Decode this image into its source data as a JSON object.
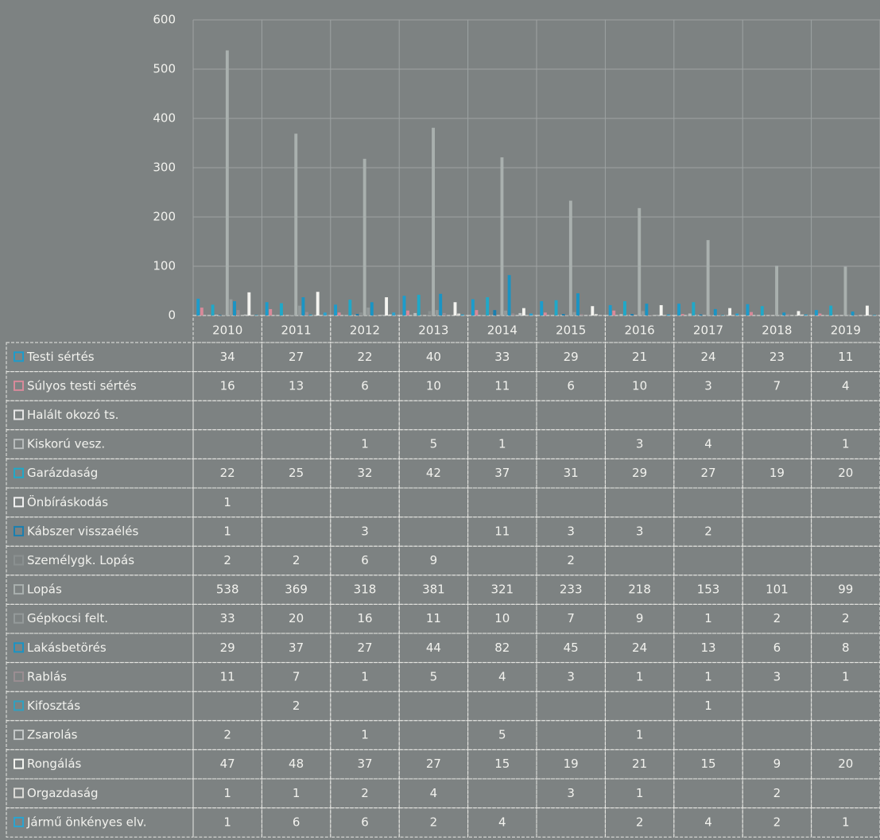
{
  "chart_data": {
    "type": "bar",
    "categories": [
      "2010",
      "2011",
      "2012",
      "2013",
      "2014",
      "2015",
      "2016",
      "2017",
      "2018",
      "2019"
    ],
    "ylim": [
      0,
      600
    ],
    "yticks": [
      0,
      100,
      200,
      300,
      400,
      500,
      600
    ],
    "grid": true,
    "series": [
      {
        "name": "Testi sértés",
        "color": "#1c9ccc",
        "values": [
          34,
          27,
          22,
          40,
          33,
          29,
          21,
          24,
          23,
          11
        ]
      },
      {
        "name": "Súlyos testi sértés",
        "color": "#d88a9a",
        "values": [
          16,
          13,
          6,
          10,
          11,
          6,
          10,
          3,
          7,
          4
        ]
      },
      {
        "name": "Halált okozó ts.",
        "color": "#e6e6e6",
        "values": [
          null,
          null,
          null,
          null,
          null,
          null,
          null,
          null,
          null,
          null
        ]
      },
      {
        "name": "Kiskorú vesz.",
        "color": "#b8bcbc",
        "values": [
          null,
          null,
          1,
          5,
          1,
          null,
          3,
          4,
          null,
          1
        ]
      },
      {
        "name": "Garázdaság",
        "color": "#20a8c8",
        "values": [
          22,
          25,
          32,
          42,
          37,
          31,
          29,
          27,
          19,
          20
        ]
      },
      {
        "name": "Önbíráskodás",
        "color": "#f0f0f0",
        "values": [
          1,
          null,
          null,
          null,
          null,
          null,
          null,
          null,
          null,
          null
        ]
      },
      {
        "name": "Kábszer visszaélés",
        "color": "#1a7fb0",
        "values": [
          1,
          null,
          3,
          null,
          11,
          3,
          3,
          2,
          null,
          null
        ]
      },
      {
        "name": "Személygk. Lopás",
        "color": "#8a9090",
        "values": [
          2,
          2,
          6,
          9,
          null,
          2,
          null,
          null,
          null,
          null
        ]
      },
      {
        "name": "Lopás",
        "color": "#a9b0ae",
        "values": [
          538,
          369,
          318,
          381,
          321,
          233,
          218,
          153,
          101,
          99
        ]
      },
      {
        "name": "Gépkocsi felt.",
        "color": "#949a9a",
        "values": [
          33,
          20,
          16,
          11,
          10,
          7,
          9,
          1,
          2,
          2
        ]
      },
      {
        "name": "Lakásbetörés",
        "color": "#1a94c4",
        "values": [
          29,
          37,
          27,
          44,
          82,
          45,
          24,
          13,
          6,
          8
        ]
      },
      {
        "name": "Rablás",
        "color": "#9a8e92",
        "values": [
          11,
          7,
          1,
          5,
          4,
          3,
          1,
          1,
          3,
          1
        ]
      },
      {
        "name": "Kifosztás",
        "color": "#30a0c0",
        "values": [
          null,
          2,
          null,
          null,
          null,
          null,
          null,
          1,
          null,
          null
        ]
      },
      {
        "name": "Zsarolás",
        "color": "#c4c8c8",
        "values": [
          2,
          null,
          1,
          null,
          5,
          null,
          1,
          null,
          null,
          null
        ]
      },
      {
        "name": "Rongálás",
        "color": "#f4f4f0",
        "values": [
          47,
          48,
          37,
          27,
          15,
          19,
          21,
          15,
          9,
          20
        ]
      },
      {
        "name": "Orgazdaság",
        "color": "#dcdcd8",
        "values": [
          1,
          1,
          2,
          4,
          null,
          3,
          1,
          null,
          2,
          null
        ]
      },
      {
        "name": "Jármű önkényes elv.",
        "color": "#2aa4d0",
        "values": [
          1,
          6,
          6,
          2,
          4,
          null,
          2,
          4,
          2,
          1
        ]
      }
    ]
  }
}
